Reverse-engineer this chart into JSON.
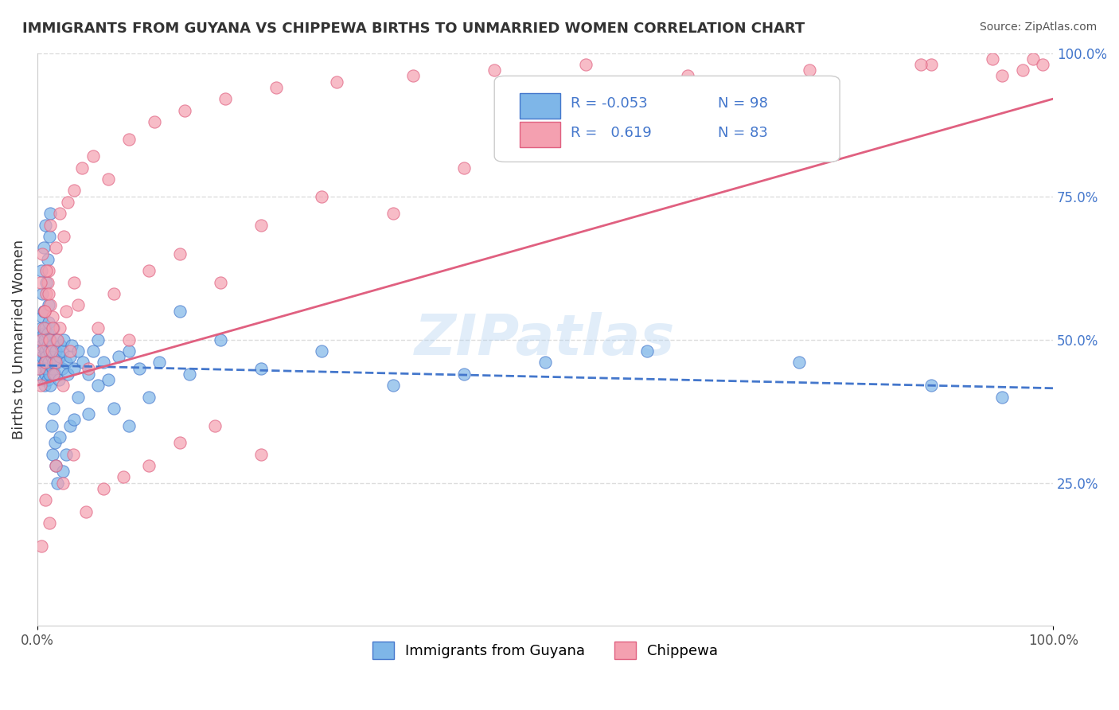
{
  "title": "IMMIGRANTS FROM GUYANA VS CHIPPEWA BIRTHS TO UNMARRIED WOMEN CORRELATION CHART",
  "source": "Source: ZipAtlas.com",
  "xlabel": "",
  "ylabel": "Births to Unmarried Women",
  "xlim": [
    0.0,
    1.0
  ],
  "ylim": [
    0.0,
    1.0
  ],
  "xtick_labels": [
    "0.0%",
    "100.0%"
  ],
  "ytick_labels_right": [
    "25.0%",
    "50.0%",
    "75.0%",
    "100.0%"
  ],
  "ytick_positions_right": [
    0.25,
    0.5,
    0.75,
    1.0
  ],
  "legend_r1": "R = -0.053",
  "legend_n1": "N = 98",
  "legend_r2": "R =  0.619",
  "legend_n2": "N = 83",
  "color_blue": "#7EB6E8",
  "color_pink": "#F4A0B0",
  "line_blue": "#4477CC",
  "line_pink": "#E06080",
  "watermark": "ZIPatlas",
  "background": "#FFFFFF",
  "grid_color": "#DDDDDD",
  "blue_x": [
    0.002,
    0.003,
    0.003,
    0.004,
    0.004,
    0.005,
    0.005,
    0.005,
    0.006,
    0.006,
    0.006,
    0.007,
    0.007,
    0.007,
    0.008,
    0.008,
    0.008,
    0.009,
    0.009,
    0.01,
    0.01,
    0.01,
    0.011,
    0.011,
    0.012,
    0.012,
    0.013,
    0.013,
    0.014,
    0.015,
    0.015,
    0.016,
    0.016,
    0.017,
    0.018,
    0.019,
    0.02,
    0.021,
    0.022,
    0.023,
    0.024,
    0.025,
    0.026,
    0.028,
    0.03,
    0.032,
    0.034,
    0.036,
    0.04,
    0.045,
    0.05,
    0.055,
    0.06,
    0.065,
    0.07,
    0.08,
    0.09,
    0.1,
    0.12,
    0.15,
    0.004,
    0.005,
    0.006,
    0.007,
    0.008,
    0.009,
    0.01,
    0.011,
    0.012,
    0.013,
    0.014,
    0.015,
    0.016,
    0.017,
    0.018,
    0.02,
    0.022,
    0.025,
    0.028,
    0.032,
    0.036,
    0.04,
    0.05,
    0.06,
    0.075,
    0.09,
    0.11,
    0.14,
    0.18,
    0.22,
    0.28,
    0.35,
    0.42,
    0.5,
    0.6,
    0.75,
    0.88,
    0.95
  ],
  "blue_y": [
    0.45,
    0.5,
    0.48,
    0.52,
    0.46,
    0.54,
    0.47,
    0.49,
    0.51,
    0.43,
    0.55,
    0.42,
    0.5,
    0.46,
    0.48,
    0.44,
    0.52,
    0.45,
    0.47,
    0.49,
    0.43,
    0.51,
    0.46,
    0.53,
    0.44,
    0.48,
    0.5,
    0.42,
    0.47,
    0.45,
    0.49,
    0.46,
    0.52,
    0.44,
    0.48,
    0.5,
    0.46,
    0.43,
    0.47,
    0.49,
    0.45,
    0.48,
    0.5,
    0.46,
    0.44,
    0.47,
    0.49,
    0.45,
    0.48,
    0.46,
    0.44,
    0.48,
    0.5,
    0.46,
    0.43,
    0.47,
    0.48,
    0.45,
    0.46,
    0.44,
    0.62,
    0.58,
    0.66,
    0.55,
    0.7,
    0.6,
    0.64,
    0.56,
    0.68,
    0.72,
    0.35,
    0.3,
    0.38,
    0.32,
    0.28,
    0.25,
    0.33,
    0.27,
    0.3,
    0.35,
    0.36,
    0.4,
    0.37,
    0.42,
    0.38,
    0.35,
    0.4,
    0.55,
    0.5,
    0.45,
    0.48,
    0.42,
    0.44,
    0.46,
    0.48,
    0.46,
    0.42,
    0.4
  ],
  "pink_x": [
    0.002,
    0.003,
    0.004,
    0.005,
    0.006,
    0.007,
    0.008,
    0.009,
    0.01,
    0.011,
    0.012,
    0.013,
    0.014,
    0.015,
    0.016,
    0.018,
    0.02,
    0.022,
    0.025,
    0.028,
    0.032,
    0.036,
    0.04,
    0.05,
    0.06,
    0.075,
    0.09,
    0.11,
    0.14,
    0.18,
    0.22,
    0.28,
    0.35,
    0.42,
    0.5,
    0.6,
    0.75,
    0.88,
    0.95,
    0.98,
    0.003,
    0.005,
    0.007,
    0.009,
    0.011,
    0.013,
    0.015,
    0.018,
    0.022,
    0.026,
    0.03,
    0.036,
    0.044,
    0.055,
    0.07,
    0.09,
    0.115,
    0.145,
    0.185,
    0.235,
    0.295,
    0.37,
    0.45,
    0.54,
    0.64,
    0.76,
    0.87,
    0.94,
    0.97,
    0.99,
    0.004,
    0.008,
    0.012,
    0.018,
    0.025,
    0.035,
    0.048,
    0.065,
    0.085,
    0.11,
    0.14,
    0.175,
    0.22
  ],
  "pink_y": [
    0.45,
    0.42,
    0.5,
    0.48,
    0.52,
    0.55,
    0.46,
    0.58,
    0.6,
    0.62,
    0.5,
    0.56,
    0.48,
    0.54,
    0.44,
    0.46,
    0.5,
    0.52,
    0.42,
    0.55,
    0.48,
    0.6,
    0.56,
    0.45,
    0.52,
    0.58,
    0.5,
    0.62,
    0.65,
    0.6,
    0.7,
    0.75,
    0.72,
    0.8,
    0.85,
    0.9,
    0.95,
    0.98,
    0.96,
    0.99,
    0.6,
    0.65,
    0.55,
    0.62,
    0.58,
    0.7,
    0.52,
    0.66,
    0.72,
    0.68,
    0.74,
    0.76,
    0.8,
    0.82,
    0.78,
    0.85,
    0.88,
    0.9,
    0.92,
    0.94,
    0.95,
    0.96,
    0.97,
    0.98,
    0.96,
    0.97,
    0.98,
    0.99,
    0.97,
    0.98,
    0.14,
    0.22,
    0.18,
    0.28,
    0.25,
    0.3,
    0.2,
    0.24,
    0.26,
    0.28,
    0.32,
    0.35,
    0.3
  ]
}
